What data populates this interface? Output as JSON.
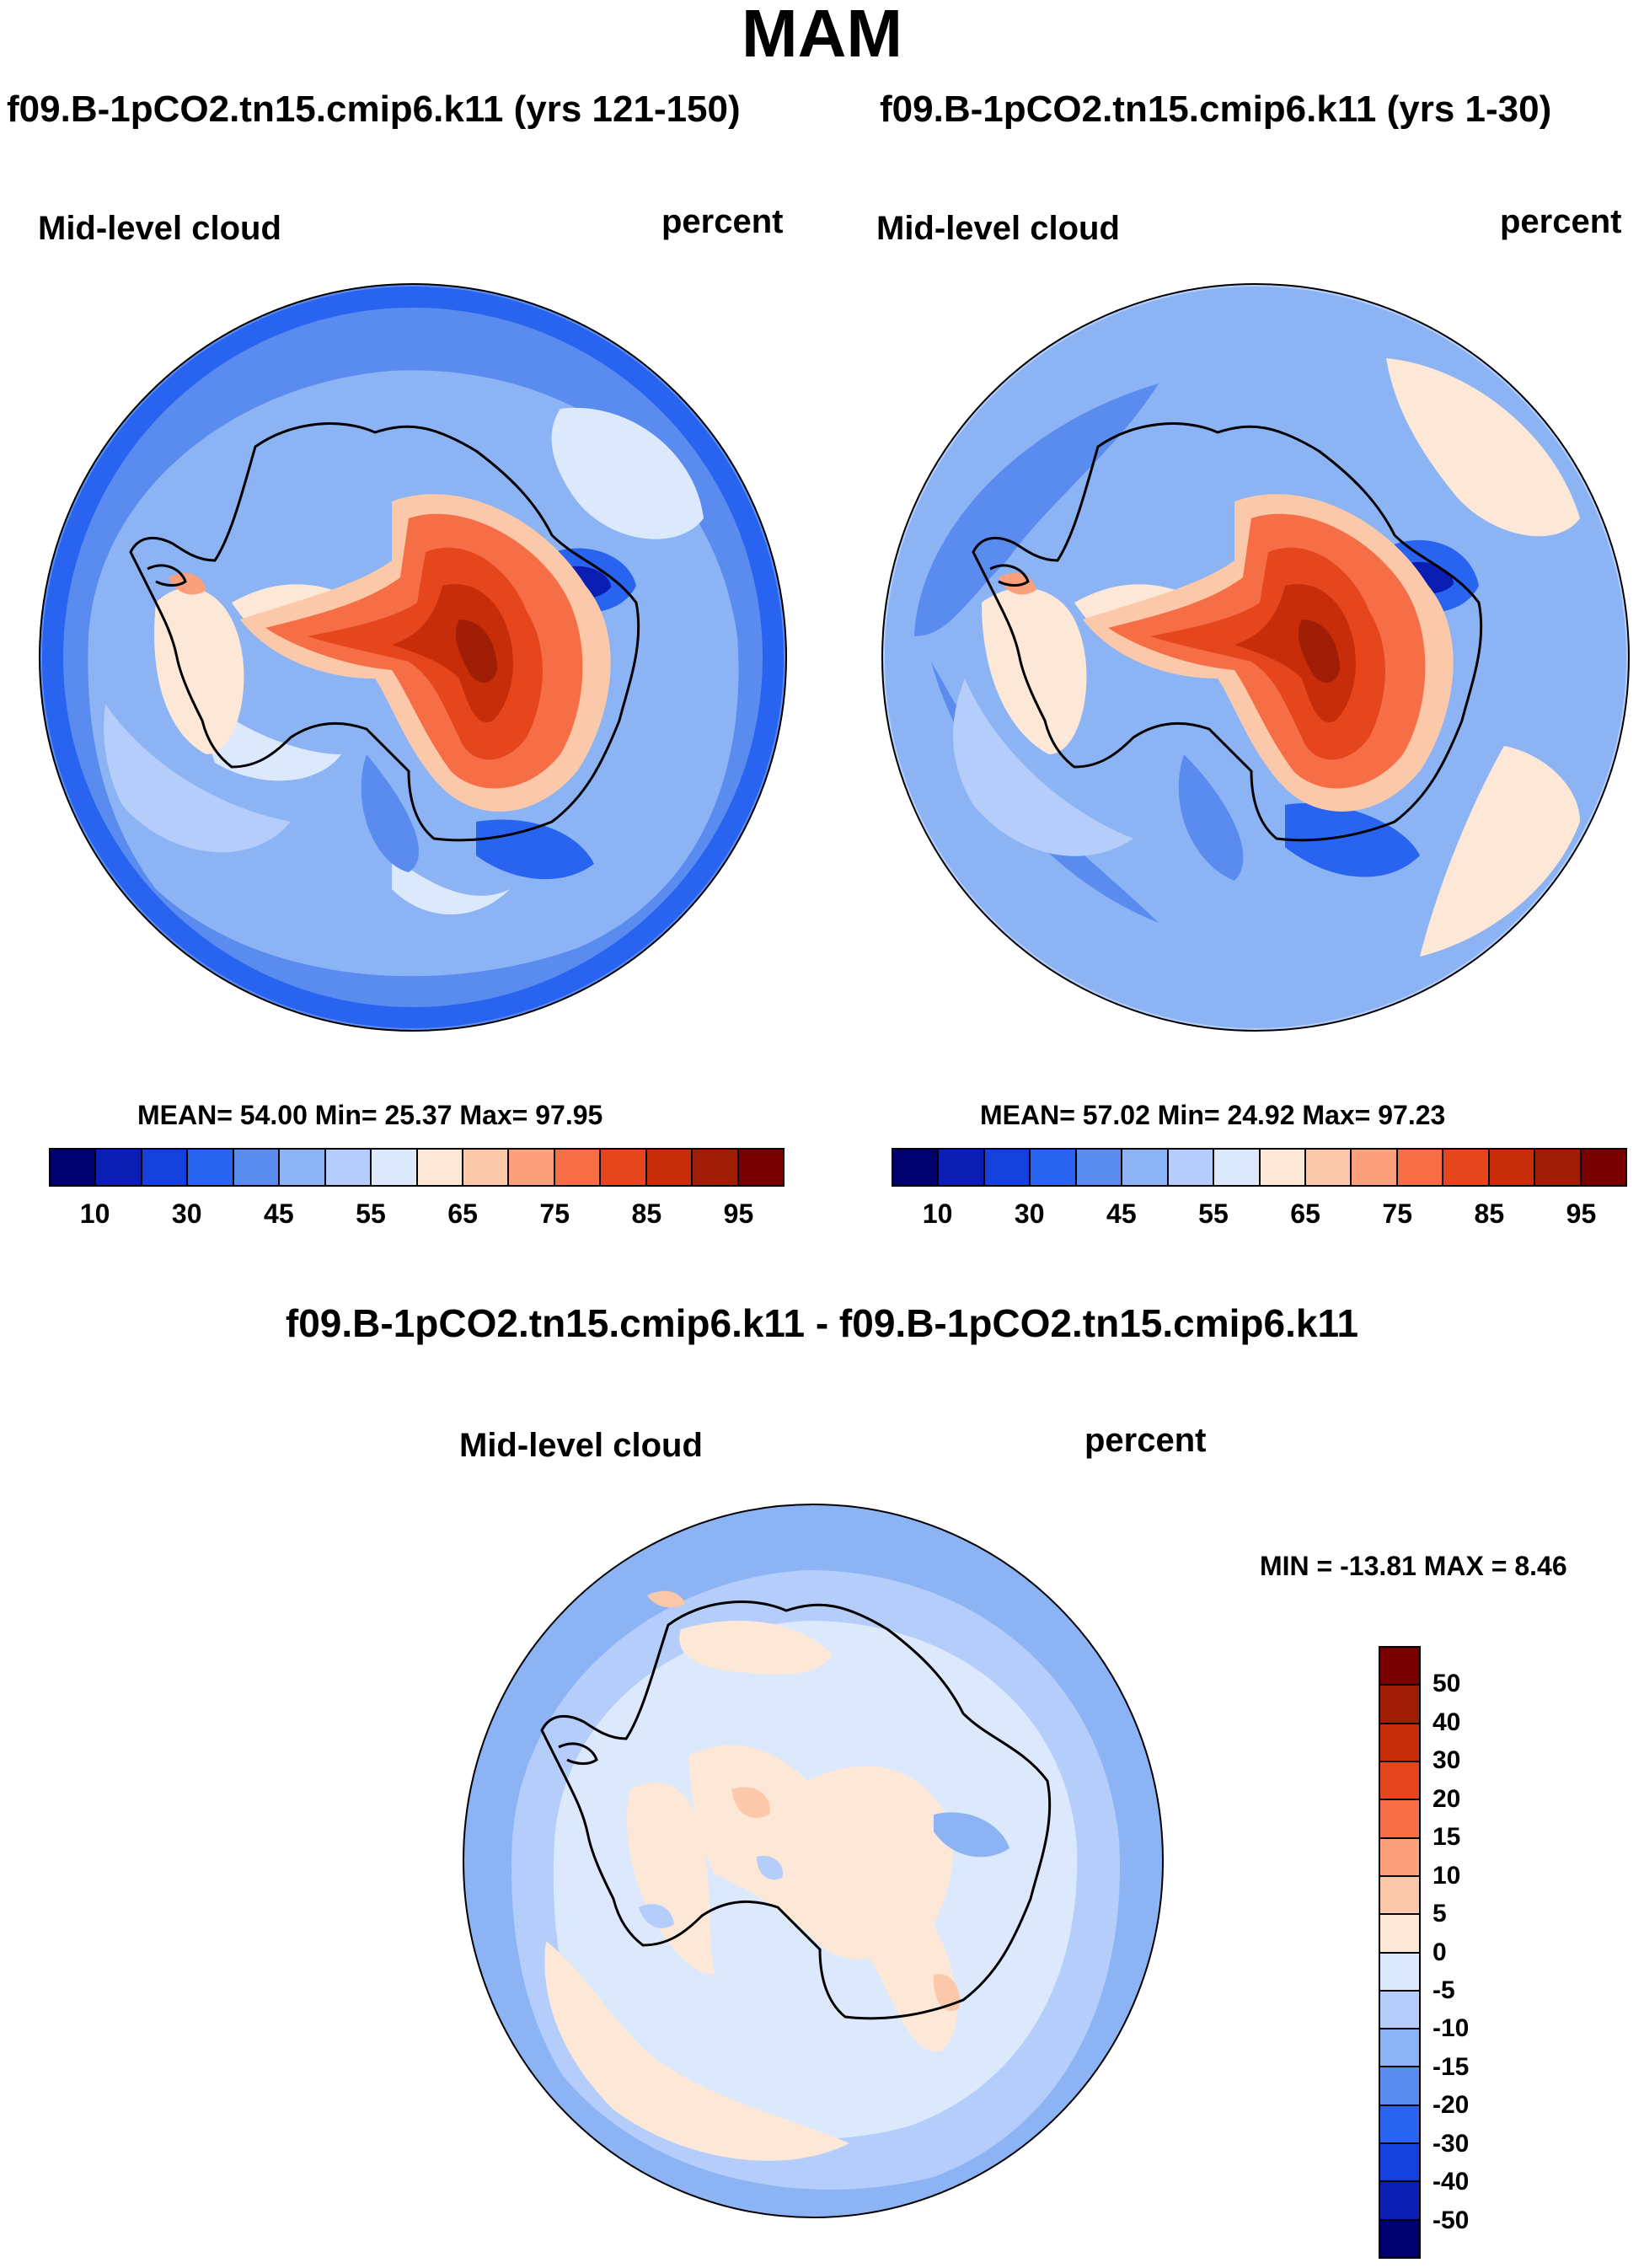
{
  "figure": {
    "title": "MAM"
  },
  "panels": [
    {
      "title": "f09.B-1pCO2.tn15.cmip6.k11 (yrs 121-150)",
      "variable": "Mid-level cloud",
      "units": "percent",
      "stats": {
        "text": "MEAN=  54.00  Min=  25.37  Max=  97.95",
        "mean": 54.0,
        "min": 25.37,
        "max": 97.95
      }
    },
    {
      "title": "f09.B-1pCO2.tn15.cmip6.k11 (yrs 1-30)",
      "variable": "Mid-level cloud",
      "units": "percent",
      "stats": {
        "text": "MEAN=  57.02  Min=  24.92  Max=  97.23",
        "mean": 57.02,
        "min": 24.92,
        "max": 97.23
      }
    },
    {
      "title": "f09.B-1pCO2.tn15.cmip6.k11 - f09.B-1pCO2.tn15.cmip6.k11",
      "variable": "Mid-level cloud",
      "units": "percent",
      "stats": {
        "text": "MIN = -13.81 MAX =   8.46",
        "min": -13.81,
        "max": 8.46
      }
    }
  ],
  "colorbar_abs": {
    "colors": [
      "#00006e",
      "#0a1eb4",
      "#1441dc",
      "#2864f0",
      "#5a8cf0",
      "#8cb4f5",
      "#b4cdfa",
      "#dce9fc",
      "#fde8d8",
      "#fcc8aa",
      "#fca07c",
      "#f56e45",
      "#e6461e",
      "#c82d0a",
      "#a01e05",
      "#780000"
    ],
    "tick_labels": [
      "10",
      "30",
      "45",
      "55",
      "65",
      "75",
      "85",
      "95"
    ]
  },
  "colorbar_diff": {
    "colors": [
      "#780000",
      "#a01e05",
      "#c82d0a",
      "#e6461e",
      "#f56e45",
      "#fca07c",
      "#fcc8aa",
      "#fde8d8",
      "#dce9fc",
      "#b4cdfa",
      "#8cb4f5",
      "#5a8cf0",
      "#2864f0",
      "#1441dc",
      "#0a1eb4",
      "#00006e"
    ],
    "tick_labels": [
      "50",
      "40",
      "30",
      "20",
      "15",
      "10",
      "5",
      "0",
      "-5",
      "-10",
      "-15",
      "-20",
      "-30",
      "-40",
      "-50"
    ]
  },
  "icons": {
    "continent_outline": "antarctica-coastline-icon"
  }
}
